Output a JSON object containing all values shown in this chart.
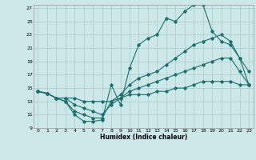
{
  "xlabel": "Humidex (Indice chaleur)",
  "bg_color": "#cce8e8",
  "line_color": "#1a7070",
  "grid_color": "#aacccc",
  "xlim": [
    -0.5,
    23.5
  ],
  "ylim": [
    9,
    27.5
  ],
  "xticks": [
    0,
    1,
    2,
    3,
    4,
    5,
    6,
    7,
    8,
    9,
    10,
    11,
    12,
    13,
    14,
    15,
    16,
    17,
    18,
    19,
    20,
    21,
    22,
    23
  ],
  "yticks": [
    9,
    11,
    13,
    15,
    17,
    19,
    21,
    23,
    25,
    27
  ],
  "line1_x": [
    0,
    1,
    2,
    3,
    4,
    5,
    6,
    7,
    8,
    9,
    10,
    11,
    12,
    13,
    14,
    15,
    16,
    17,
    18,
    19,
    20,
    21,
    22,
    23
  ],
  "line1_y": [
    14.5,
    14.2,
    13.5,
    13.0,
    11.0,
    10.0,
    10.0,
    10.2,
    15.5,
    12.5,
    18.0,
    21.5,
    22.5,
    23.0,
    25.5,
    25.0,
    26.5,
    27.5,
    27.5,
    23.5,
    22.0,
    21.5,
    19.5,
    17.5
  ],
  "line2_x": [
    0,
    1,
    2,
    3,
    4,
    5,
    6,
    7,
    8,
    9,
    10,
    11,
    12,
    13,
    14,
    15,
    16,
    17,
    18,
    19,
    20,
    21,
    22,
    23
  ],
  "line2_y": [
    14.5,
    14.2,
    13.5,
    13.0,
    11.5,
    11.0,
    10.5,
    10.5,
    13.0,
    14.0,
    15.5,
    16.5,
    17.0,
    17.5,
    18.5,
    19.5,
    20.5,
    21.5,
    22.0,
    22.5,
    23.0,
    22.0,
    19.5,
    15.5
  ],
  "line3_x": [
    0,
    1,
    2,
    3,
    4,
    5,
    6,
    7,
    8,
    9,
    10,
    11,
    12,
    13,
    14,
    15,
    16,
    17,
    18,
    19,
    20,
    21,
    22,
    23
  ],
  "line3_y": [
    14.5,
    14.2,
    13.5,
    13.5,
    12.5,
    12.0,
    11.5,
    11.0,
    12.5,
    13.5,
    14.5,
    15.0,
    15.5,
    16.0,
    16.5,
    17.0,
    17.5,
    18.0,
    18.5,
    19.0,
    19.5,
    19.5,
    17.5,
    15.5
  ],
  "line4_x": [
    0,
    1,
    2,
    3,
    4,
    5,
    6,
    7,
    8,
    9,
    10,
    11,
    12,
    13,
    14,
    15,
    16,
    17,
    18,
    19,
    20,
    21,
    22,
    23
  ],
  "line4_y": [
    14.5,
    14.2,
    13.5,
    13.5,
    13.5,
    13.0,
    13.0,
    13.0,
    13.0,
    13.5,
    14.0,
    14.0,
    14.0,
    14.5,
    14.5,
    15.0,
    15.0,
    15.5,
    16.0,
    16.0,
    16.0,
    16.0,
    15.5,
    15.5
  ]
}
